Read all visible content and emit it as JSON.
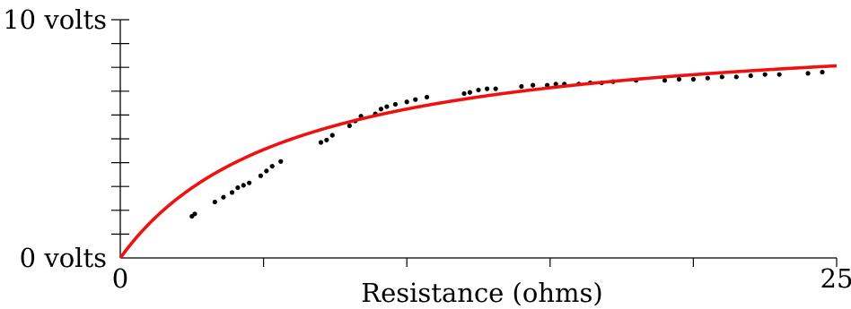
{
  "chart_data": {
    "type": "scatter",
    "xlabel": "Resistance (ohms)",
    "ylabel": "",
    "xlim": [
      0,
      25
    ],
    "ylim": [
      0,
      10
    ],
    "x_tick_labels": [
      {
        "value": 0,
        "label": "0"
      },
      {
        "value": 25,
        "label": "25"
      }
    ],
    "y_tick_labels": [
      {
        "value": 0,
        "label": "0 volts"
      },
      {
        "value": 10,
        "label": "10 volts"
      }
    ],
    "x_minor_ticks": [
      5,
      10,
      15,
      20
    ],
    "y_minor_ticks": [
      1,
      2,
      3,
      4,
      5,
      6,
      7,
      8,
      9
    ],
    "grid": false,
    "colors": {
      "points": "#000000",
      "fit": "#ee1111",
      "axes": "#000000"
    },
    "series": [
      {
        "kind": "points",
        "x": [
          2.5,
          2.6,
          3.3,
          3.6,
          3.9,
          4.1,
          4.3,
          4.5,
          4.9,
          5.1,
          5.3,
          5.6,
          7.0,
          7.2,
          7.4,
          8.0,
          8.2,
          8.4,
          8.9,
          9.1,
          9.3,
          9.6,
          10.0,
          10.3,
          10.7,
          12.0,
          12.2,
          12.5,
          12.8,
          13.1,
          14.0,
          14.4,
          14.9,
          15.2,
          15.5,
          16.0,
          16.4,
          16.8,
          17.2,
          18.0,
          19.0,
          19.5,
          20.0,
          20.5,
          21.0,
          21.5,
          22.0,
          22.5,
          23.0,
          24.0,
          24.5
        ],
        "y": [
          1.75,
          1.85,
          2.35,
          2.55,
          2.75,
          2.95,
          3.05,
          3.15,
          3.45,
          3.65,
          3.85,
          4.05,
          4.85,
          4.95,
          5.15,
          5.55,
          5.75,
          5.95,
          6.05,
          6.25,
          6.35,
          6.45,
          6.55,
          6.65,
          6.75,
          6.9,
          6.95,
          7.05,
          7.1,
          7.1,
          7.2,
          7.25,
          7.25,
          7.3,
          7.3,
          7.3,
          7.35,
          7.35,
          7.4,
          7.45,
          7.45,
          7.5,
          7.5,
          7.55,
          7.6,
          7.6,
          7.65,
          7.7,
          7.7,
          7.75,
          7.8
        ]
      },
      {
        "kind": "fit",
        "equation": "V = 10*R/(R+6)"
      }
    ]
  }
}
